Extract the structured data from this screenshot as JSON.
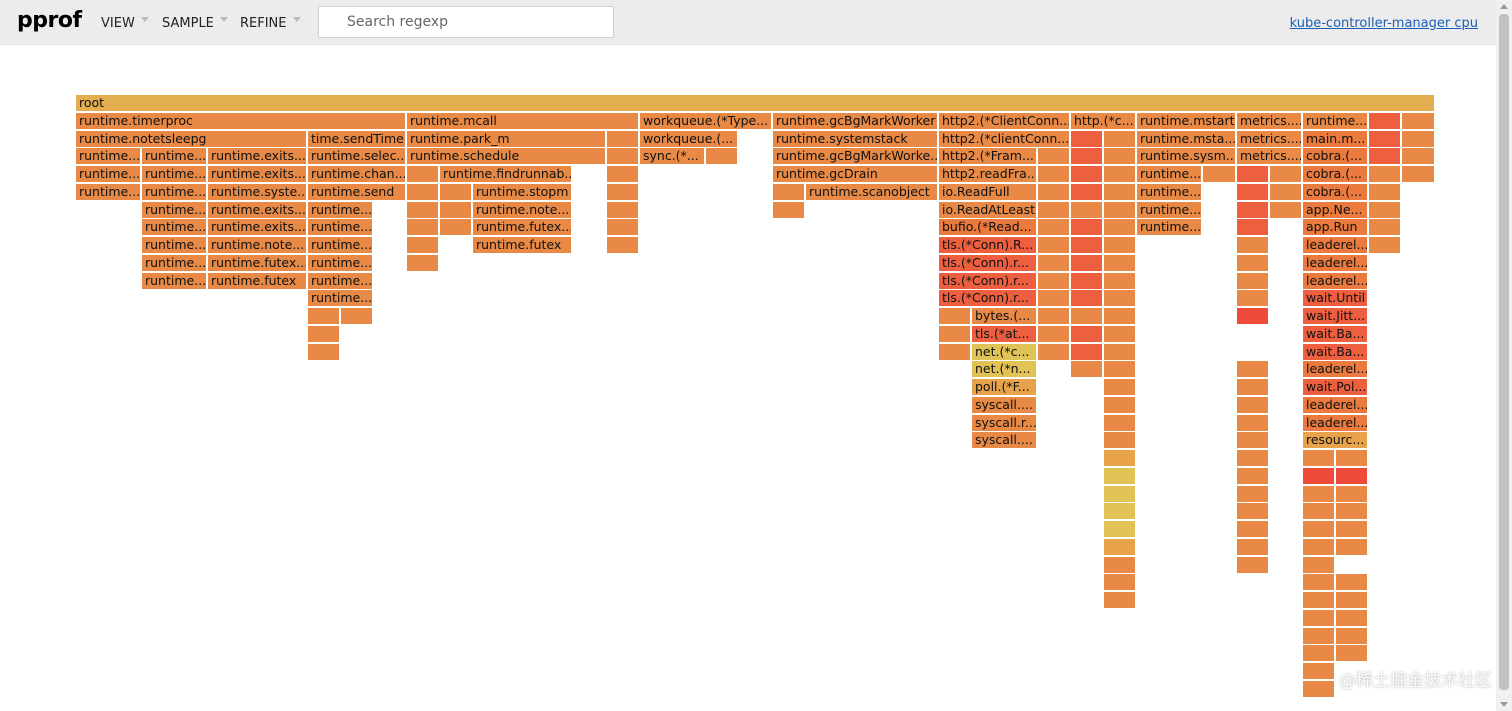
{
  "header": {
    "logo": "pprof",
    "menus": [
      "VIEW",
      "SAMPLE",
      "REFINE"
    ],
    "search_placeholder": "Search regexp",
    "profile_title": "kube-controller-manager cpu"
  },
  "colors": {
    "header_bg": "#ececec",
    "root": "#e2ae4f",
    "default": "#e88a45",
    "orange_dark": "#ea7a3e",
    "red": "#ee5f3f",
    "red_bright": "#f04a3a",
    "yellow": "#e0c255",
    "amber": "#e7a24a"
  },
  "flame_rows": [
    [
      {
        "label": "root",
        "color": "root"
      }
    ],
    [
      {
        "label": "runtime.timerproc"
      },
      {
        "label": "runtime.mcall"
      },
      {
        "label": "workqueue.(*Type..."
      },
      {
        "label": "runtime.gcBgMarkWorker"
      },
      {
        "label": "http2.(*ClientConn..."
      },
      {
        "label": "http.(*c..."
      },
      {
        "label": "runtime.mstart"
      },
      {
        "label": "metrics...."
      },
      {
        "label": "runtime..."
      },
      {
        "label": "",
        "color": "red"
      },
      {
        "label": ""
      }
    ],
    [
      {
        "label": "runtime.notetsleepg"
      },
      {
        "label": "time.sendTime"
      },
      {
        "label": "runtime.park_m"
      },
      {
        "label": ""
      },
      {
        "label": "workqueue.(..."
      },
      {
        "label": "runtime.systemstack"
      },
      {
        "label": "http2.(*clientConn..."
      },
      {
        "label": "",
        "color": "red"
      },
      {
        "label": ""
      },
      {
        "label": "runtime.msta..."
      },
      {
        "label": "metrics...."
      },
      {
        "label": "main.m...",
        "color": "orange_dark"
      },
      {
        "label": "",
        "color": "red"
      },
      {
        "label": ""
      }
    ],
    [
      {
        "label": "runtime..."
      },
      {
        "label": "runtime..."
      },
      {
        "label": "runtime.exits..."
      },
      {
        "label": "runtime.selec..."
      },
      {
        "label": "runtime.schedule"
      },
      {
        "label": ""
      },
      {
        "label": "sync.(*..."
      },
      {
        "label": ""
      },
      {
        "label": "runtime.gcBgMarkWorke..."
      },
      {
        "label": "http2.(*Fram..."
      },
      {
        "label": ""
      },
      {
        "label": "",
        "color": "red"
      },
      {
        "label": ""
      },
      {
        "label": "runtime.sysm..."
      },
      {
        "label": "metrics...."
      },
      {
        "label": "cobra.(...",
        "color": "orange_dark"
      },
      {
        "label": "",
        "color": "red"
      },
      {
        "label": ""
      }
    ],
    [
      {
        "label": "runtime..."
      },
      {
        "label": "runtime..."
      },
      {
        "label": "runtime.exits..."
      },
      {
        "label": "runtime.chan..."
      },
      {
        "label": ""
      },
      {
        "label": "runtime.findrunnab..."
      },
      {
        "label": ""
      },
      {
        "label": "runtime.gcDrain"
      },
      {
        "label": "http2.readFra..."
      },
      {
        "label": ""
      },
      {
        "label": "",
        "color": "red"
      },
      {
        "label": ""
      },
      {
        "label": "runtime..."
      },
      {
        "label": ""
      },
      {
        "label": "",
        "color": "red"
      },
      {
        "label": ""
      },
      {
        "label": "cobra.(...",
        "color": "orange_dark"
      },
      {
        "label": ""
      },
      {
        "label": ""
      }
    ],
    [
      {
        "label": "runtime..."
      },
      {
        "label": "runtime..."
      },
      {
        "label": "runtime.syste..."
      },
      {
        "label": "runtime.send"
      },
      {
        "label": ""
      },
      {
        "label": ""
      },
      {
        "label": "runtime.stopm"
      },
      {
        "label": ""
      },
      {
        "label": ""
      },
      {
        "label": "runtime.scanobject"
      },
      {
        "label": "io.ReadFull"
      },
      {
        "label": ""
      },
      {
        "label": "",
        "color": "red"
      },
      {
        "label": ""
      },
      {
        "label": "runtime..."
      },
      {
        "label": "",
        "color": "red"
      },
      {
        "label": ""
      },
      {
        "label": "cobra.(...",
        "color": "orange_dark"
      },
      {
        "label": ""
      }
    ],
    [
      {
        "label": "runtime..."
      },
      {
        "label": "runtime.exits..."
      },
      {
        "label": "runtime..."
      },
      {
        "label": ""
      },
      {
        "label": ""
      },
      {
        "label": "runtime.note..."
      },
      {
        "label": ""
      },
      {
        "label": ""
      },
      {
        "label": "io.ReadAtLeast"
      },
      {
        "label": ""
      },
      {
        "label": ""
      },
      {
        "label": ""
      },
      {
        "label": "runtime..."
      },
      {
        "label": "",
        "color": "red"
      },
      {
        "label": ""
      },
      {
        "label": "app.Ne...",
        "color": "orange_dark"
      },
      {
        "label": ""
      }
    ],
    [
      {
        "label": "runtime..."
      },
      {
        "label": "runtime.exits..."
      },
      {
        "label": "runtime..."
      },
      {
        "label": ""
      },
      {
        "label": ""
      },
      {
        "label": "runtime.futex..."
      },
      {
        "label": ""
      },
      {
        "label": "bufio.(*Read...",
        "color": "orange_dark"
      },
      {
        "label": ""
      },
      {
        "label": "",
        "color": "red"
      },
      {
        "label": ""
      },
      {
        "label": "runtime..."
      },
      {
        "label": "",
        "color": "red"
      },
      {
        "label": "app.Run",
        "color": "orange_dark"
      },
      {
        "label": ""
      }
    ],
    [
      {
        "label": "runtime..."
      },
      {
        "label": "runtime.note..."
      },
      {
        "label": "runtime..."
      },
      {
        "label": ""
      },
      {
        "label": "runtime.futex"
      },
      {
        "label": ""
      },
      {
        "label": "tls.(*Conn).R...",
        "color": "red"
      },
      {
        "label": ""
      },
      {
        "label": "",
        "color": "red"
      },
      {
        "label": ""
      },
      {
        "label": ""
      },
      {
        "label": "leaderel...",
        "color": "orange_dark"
      },
      {
        "label": ""
      }
    ],
    [
      {
        "label": "runtime..."
      },
      {
        "label": "runtime.futex..."
      },
      {
        "label": "runtime..."
      },
      {
        "label": ""
      },
      {
        "label": "tls.(*Conn).r...",
        "color": "red"
      },
      {
        "label": ""
      },
      {
        "label": "",
        "color": "red"
      },
      {
        "label": ""
      },
      {
        "label": ""
      },
      {
        "label": "leaderel...",
        "color": "orange_dark"
      }
    ],
    [
      {
        "label": "runtime..."
      },
      {
        "label": "runtime.futex"
      },
      {
        "label": "runtime..."
      },
      {
        "label": "tls.(*Conn).r...",
        "color": "red"
      },
      {
        "label": ""
      },
      {
        "label": "",
        "color": "red"
      },
      {
        "label": ""
      },
      {
        "label": ""
      },
      {
        "label": "leaderel...",
        "color": "orange_dark"
      }
    ],
    [
      {
        "label": "runtime..."
      },
      {
        "label": "tls.(*Conn).r...",
        "color": "red"
      },
      {
        "label": ""
      },
      {
        "label": "",
        "color": "red"
      },
      {
        "label": ""
      },
      {
        "label": ""
      },
      {
        "label": "wait.Until",
        "color": "red"
      }
    ],
    [
      {
        "label": ""
      },
      {
        "label": ""
      },
      {
        "label": ""
      },
      {
        "label": "bytes.(..."
      },
      {
        "label": ""
      },
      {
        "label": ""
      },
      {
        "label": ""
      },
      {
        "label": "",
        "color": "red_bright"
      },
      {
        "label": "wait.Jitt...",
        "color": "red"
      }
    ],
    [
      {
        "label": ""
      },
      {
        "label": ""
      },
      {
        "label": "tls.(*at...",
        "color": "red"
      },
      {
        "label": ""
      },
      {
        "label": "",
        "color": "red"
      },
      {
        "label": ""
      },
      {
        "label": "wait.Ba...",
        "color": "red"
      }
    ],
    [
      {
        "label": ""
      },
      {
        "label": ""
      },
      {
        "label": "net.(*c...",
        "color": "yellow"
      },
      {
        "label": ""
      },
      {
        "label": "",
        "color": "red"
      },
      {
        "label": ""
      },
      {
        "label": "wait.Ba...",
        "color": "red"
      }
    ],
    [
      {
        "label": "net.(*n...",
        "color": "yellow"
      },
      {
        "label": ""
      },
      {
        "label": ""
      },
      {
        "label": ""
      },
      {
        "label": "leaderel...",
        "color": "orange_dark"
      }
    ],
    [
      {
        "label": "poll.(*F...",
        "color": "amber"
      },
      {
        "label": ""
      },
      {
        "label": ""
      },
      {
        "label": "wait.Pol...",
        "color": "red"
      }
    ],
    [
      {
        "label": "syscall...."
      },
      {
        "label": ""
      },
      {
        "label": ""
      },
      {
        "label": "leaderel...",
        "color": "orange_dark"
      }
    ],
    [
      {
        "label": "syscall.r..."
      },
      {
        "label": ""
      },
      {
        "label": ""
      },
      {
        "label": "leaderel...",
        "color": "orange_dark"
      }
    ],
    [
      {
        "label": "syscall...."
      },
      {
        "label": ""
      },
      {
        "label": ""
      },
      {
        "label": "resourc...",
        "color": "amber"
      }
    ],
    [
      {
        "label": "",
        "color": "amber"
      },
      {
        "label": ""
      },
      {
        "label": ""
      },
      {
        "label": ""
      }
    ],
    [
      {
        "label": "",
        "color": "yellow"
      },
      {
        "label": ""
      },
      {
        "label": "",
        "color": "red_bright"
      },
      {
        "label": "",
        "color": "red_bright"
      }
    ],
    [
      {
        "label": "",
        "color": "yellow"
      },
      {
        "label": ""
      },
      {
        "label": ""
      },
      {
        "label": ""
      }
    ],
    [
      {
        "label": "",
        "color": "yellow"
      },
      {
        "label": ""
      },
      {
        "label": ""
      },
      {
        "label": ""
      }
    ],
    [
      {
        "label": "",
        "color": "yellow"
      },
      {
        "label": ""
      },
      {
        "label": ""
      },
      {
        "label": ""
      }
    ],
    [
      {
        "label": "",
        "color": "amber"
      },
      {
        "label": ""
      },
      {
        "label": ""
      },
      {
        "label": ""
      }
    ],
    [
      {
        "label": ""
      },
      {
        "label": ""
      },
      {
        "label": ""
      }
    ],
    [
      {
        "label": ""
      },
      {
        "label": ""
      },
      {
        "label": ""
      }
    ],
    [
      {
        "label": ""
      },
      {
        "label": ""
      },
      {
        "label": ""
      }
    ],
    [
      {
        "label": ""
      },
      {
        "label": ""
      }
    ],
    [
      {
        "label": ""
      },
      {
        "label": ""
      }
    ],
    [
      {
        "label": ""
      },
      {
        "label": ""
      }
    ],
    [
      {
        "label": ""
      }
    ],
    [
      {
        "label": ""
      }
    ]
  ],
  "watermark": "@稀土掘金技术社区"
}
